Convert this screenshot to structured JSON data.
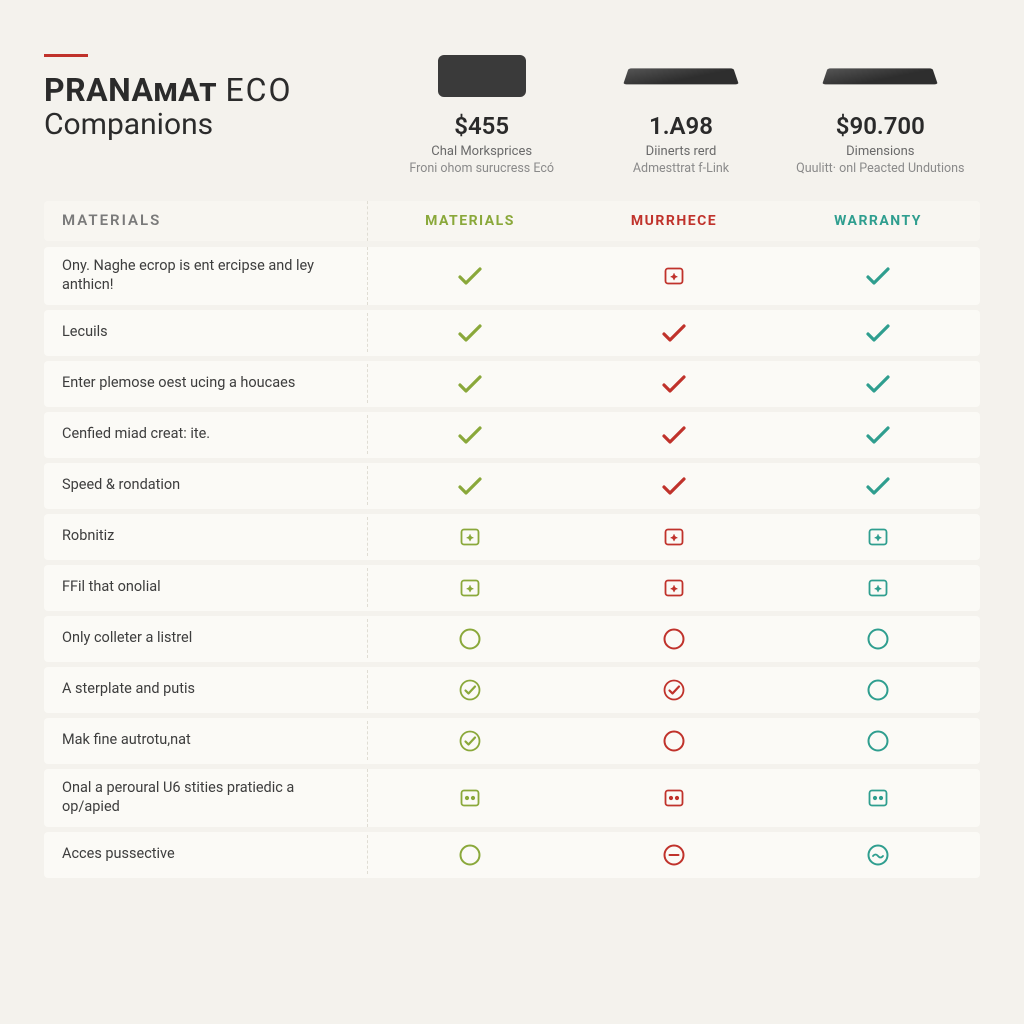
{
  "colors": {
    "background": "#f4f2ed",
    "row_bg": "#fbfaf6",
    "header_bg": "#f8f6f1",
    "accent_rule": "#c0322b",
    "text": "#3a3a3a",
    "green": "#8aa83a",
    "red": "#c0322b",
    "teal": "#2f9e8f"
  },
  "title": {
    "line1_strong": "PRANAmAt",
    "line1_light": "ECO",
    "line2": "Companions"
  },
  "products": [
    {
      "price": "$455",
      "sub1": "Chal Morksprices",
      "sub2": "Froni ohom surucress Ecó",
      "header_label": "MATERIALS",
      "header_color": "green"
    },
    {
      "price": "1.A98",
      "sub1": "Diinerts rerd",
      "sub2": "Admesttrat f-Link",
      "header_label": "MURRHECE",
      "header_color": "red"
    },
    {
      "price": "$90.700",
      "sub1": "Dimensions",
      "sub2": "Quulitt· onl Peacted Undutions",
      "header_label": "WARRANTY",
      "header_color": "teal"
    }
  ],
  "features_header": "MATERIALS",
  "rows": [
    {
      "label": "Ony. Naghe ecrop is ent ercipse and ley anthicn!",
      "cells": [
        "check-green",
        "square-red",
        "check-teal"
      ]
    },
    {
      "label": "Lecuils",
      "cells": [
        "check-green",
        "check-red",
        "check-teal"
      ]
    },
    {
      "label": "Enter plemose oest ucing a houcaes",
      "cells": [
        "check-green",
        "check-red",
        "check-teal"
      ]
    },
    {
      "label": "Cenfied miad creat: ite.",
      "cells": [
        "check-green",
        "check-red",
        "check-teal"
      ]
    },
    {
      "label": "Speed & rondation",
      "cells": [
        "check-green",
        "check-red",
        "check-teal"
      ]
    },
    {
      "label": "Robnitiz",
      "cells": [
        "square-green",
        "square-red",
        "square-teal"
      ]
    },
    {
      "label": "FFil that onolial",
      "cells": [
        "square-green",
        "square-red",
        "square-teal"
      ]
    },
    {
      "label": "Only colleter a listrel",
      "cells": [
        "circle-green",
        "circle-red",
        "circle-teal"
      ]
    },
    {
      "label": "A sterplate and putis",
      "cells": [
        "circlecheck-green",
        "circlecheck-red",
        "circle-teal"
      ]
    },
    {
      "label": "Mak fine autrotu,nat",
      "cells": [
        "circlecheck-green",
        "circle-red",
        "circle-teal"
      ]
    },
    {
      "label": "Onal a peroural U6 stities pratiedic a op/apied",
      "cells": [
        "squareicon-green",
        "squareicon-red",
        "squareicon-teal"
      ]
    },
    {
      "label": "Acces pussective",
      "cells": [
        "circle-green",
        "circledash-red",
        "circlewave-teal"
      ]
    }
  ]
}
